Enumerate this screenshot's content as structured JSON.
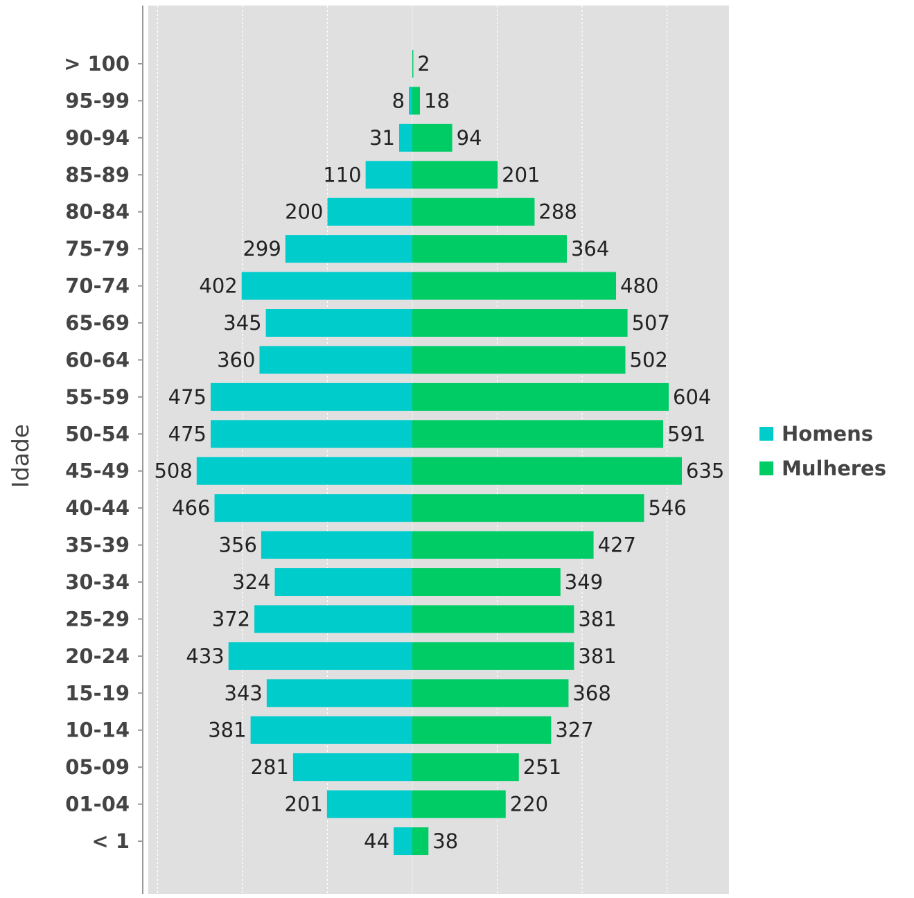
{
  "chart_data": {
    "type": "bar",
    "orientation": "horizontal",
    "layout": "population-pyramid",
    "ylabel": "Idade",
    "xlim": [
      -635,
      635
    ],
    "grid": "vertical-dashed",
    "legend_position": "right",
    "categories": [
      "> 100",
      "95-99",
      "90-94",
      "85-89",
      "80-84",
      "75-79",
      "70-74",
      "65-69",
      "60-64",
      "55-59",
      "50-54",
      "45-49",
      "40-44",
      "35-39",
      "30-34",
      "25-29",
      "20-24",
      "15-19",
      "10-14",
      "05-09",
      "01-04",
      "< 1"
    ],
    "series": [
      {
        "name": "Homens",
        "color": "#00CCCC",
        "side": "left",
        "values": [
          0,
          8,
          31,
          110,
          200,
          299,
          402,
          345,
          360,
          475,
          475,
          508,
          466,
          356,
          324,
          372,
          433,
          343,
          381,
          281,
          201,
          44
        ]
      },
      {
        "name": "Mulheres",
        "color": "#00CC66",
        "side": "right",
        "values": [
          2,
          18,
          94,
          201,
          288,
          364,
          480,
          507,
          502,
          604,
          591,
          635,
          546,
          427,
          349,
          381,
          381,
          368,
          327,
          251,
          220,
          38
        ]
      }
    ],
    "plot_background": "#E0E0E0"
  }
}
